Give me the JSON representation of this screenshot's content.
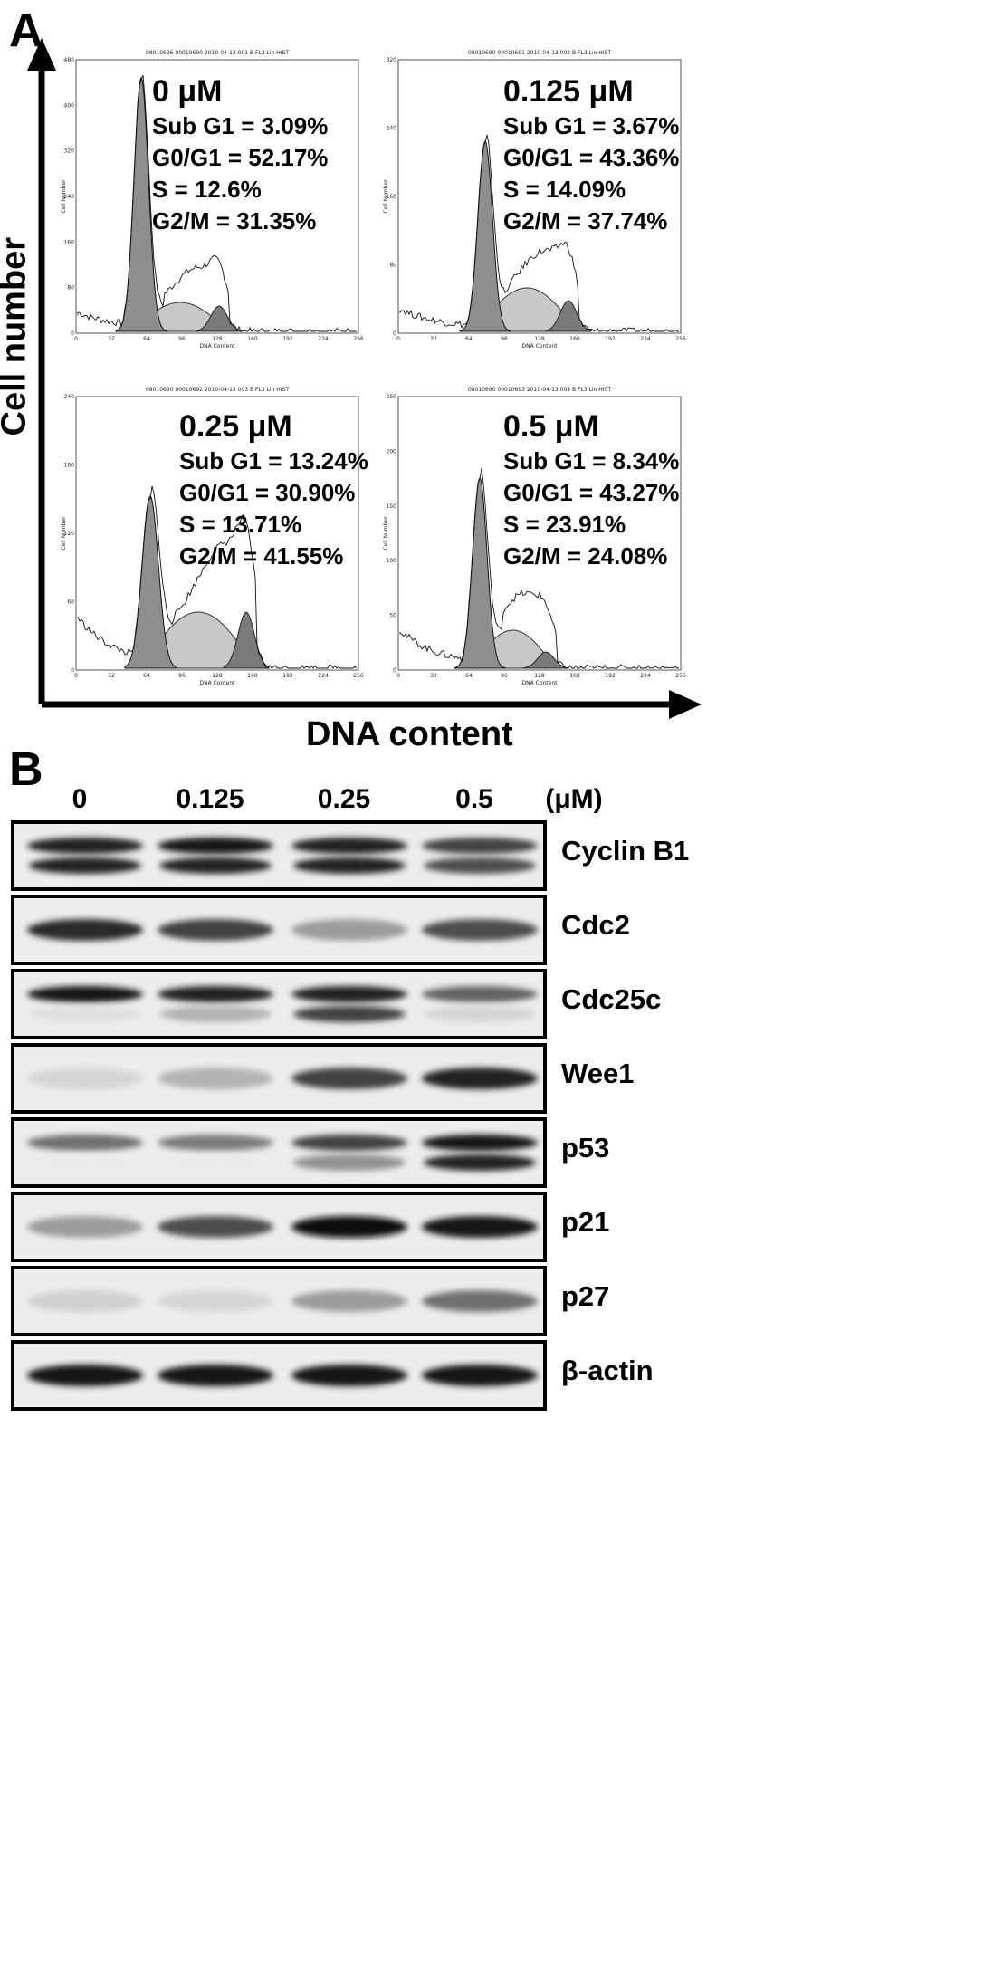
{
  "panel_a": {
    "letter": "A",
    "y_axis_title": "Cell number",
    "x_axis_title": "DNA content",
    "histograms": [
      {
        "concentration": "0 μM",
        "sub_g1": "Sub G1 = 3.09%",
        "g0_g1": "G0/G1 = 52.17%",
        "s": "S = 12.6%",
        "g2_m": "G2/M = 31.35%",
        "header": "08010696 00010690 2010-04-13 001 B FL3 Lin HIST",
        "axis_label_x": "DNA Content",
        "axis_label_y": "Cell Number",
        "x_ticks": [
          "0",
          "32",
          "64",
          "96",
          "128",
          "160",
          "192",
          "224",
          "256"
        ],
        "y_ticks": [
          "0",
          "80",
          "160",
          "240",
          "320",
          "400",
          "480"
        ]
      },
      {
        "concentration": "0.125 μM",
        "sub_g1": "Sub G1 = 3.67%",
        "g0_g1": "G0/G1 = 43.36%",
        "s": "S = 14.09%",
        "g2_m": "G2/M = 37.74%",
        "header": "08010690 00010691 2010-04-13 002 B FL3 Lin HIST",
        "axis_label_x": "DNA Content",
        "axis_label_y": "Cell Number",
        "x_ticks": [
          "0",
          "32",
          "64",
          "96",
          "128",
          "160",
          "192",
          "224",
          "256"
        ],
        "y_ticks": [
          "0",
          "80",
          "160",
          "240",
          "320"
        ]
      },
      {
        "concentration": "0.25 μM",
        "sub_g1": "Sub G1 = 13.24%",
        "g0_g1": "G0/G1 = 30.90%",
        "s": "S = 13.71%",
        "g2_m": "G2/M = 41.55%",
        "header": "08010690 00010692 2010-04-13 003 B FL3 Lin HIST",
        "axis_label_x": "DNA Content",
        "axis_label_y": "Cell Number",
        "x_ticks": [
          "0",
          "32",
          "64",
          "96",
          "128",
          "160",
          "192",
          "224",
          "256"
        ],
        "y_ticks": [
          "0",
          "60",
          "120",
          "180",
          "240"
        ]
      },
      {
        "concentration": "0.5 μM",
        "sub_g1": "Sub G1 = 8.34%",
        "g0_g1": "G0/G1 = 43.27%",
        "s": "S = 23.91%",
        "g2_m": "G2/M = 24.08%",
        "header": "08010690 00010693 2010-04-13 004 B FL3 Lin HIST",
        "axis_label_x": "DNA Content",
        "axis_label_y": "Cell Number",
        "x_ticks": [
          "0",
          "32",
          "64",
          "96",
          "128",
          "160",
          "192",
          "224",
          "256"
        ],
        "y_ticks": [
          "0",
          "50",
          "100",
          "150",
          "200",
          "250"
        ]
      }
    ]
  },
  "panel_b": {
    "letter": "B",
    "doses": [
      "0",
      "0.125",
      "0.25",
      "0.5"
    ],
    "unit": "(μM)",
    "blots": [
      {
        "label": "Cyclin B1",
        "intensity": [
          0.9,
          0.95,
          0.9,
          0.75
        ],
        "double_band": true,
        "lower": [
          0.9,
          0.9,
          0.9,
          0.7
        ]
      },
      {
        "label": "Cdc2",
        "intensity": [
          0.85,
          0.75,
          0.35,
          0.7
        ],
        "double_band": false
      },
      {
        "label": "Cdc25c",
        "intensity": [
          0.95,
          0.9,
          0.9,
          0.6
        ],
        "double_band": true,
        "lower": [
          0.05,
          0.25,
          0.75,
          0.1
        ]
      },
      {
        "label": "Wee1",
        "intensity": [
          0.1,
          0.25,
          0.75,
          0.9
        ],
        "double_band": false
      },
      {
        "label": "p53",
        "intensity": [
          0.55,
          0.5,
          0.75,
          0.95
        ],
        "double_band": true,
        "lower": [
          0.0,
          0.0,
          0.4,
          0.9
        ]
      },
      {
        "label": "p21",
        "intensity": [
          0.35,
          0.7,
          1.0,
          0.95
        ],
        "double_band": false
      },
      {
        "label": "p27",
        "intensity": [
          0.12,
          0.1,
          0.35,
          0.55
        ],
        "double_band": false
      },
      {
        "label": "β-actin",
        "intensity": [
          0.95,
          0.95,
          0.95,
          0.95
        ],
        "double_band": false
      }
    ]
  }
}
